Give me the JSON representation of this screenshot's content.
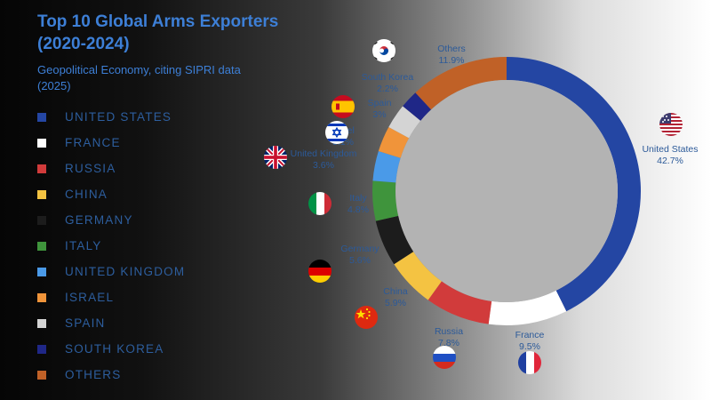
{
  "header": {
    "title_line1": "Top 10 Global Arms Exporters",
    "title_line2": "(2020-2024)",
    "subtitle_line1": "Geopolitical Economy, citing SIPRI data",
    "subtitle_line2": "(2025)"
  },
  "legend": [
    {
      "label": "UNITED STATES",
      "color": "#2446a3"
    },
    {
      "label": "FRANCE",
      "color": "#ffffff"
    },
    {
      "label": "RUSSIA",
      "color": "#d13b3b"
    },
    {
      "label": "CHINA",
      "color": "#f4c342"
    },
    {
      "label": "GERMANY",
      "color": "#1c1c1c"
    },
    {
      "label": "ITALY",
      "color": "#3f943c"
    },
    {
      "label": "UNITED KINGDOM",
      "color": "#4a9ae8"
    },
    {
      "label": "ISRAEL",
      "color": "#f0943a"
    },
    {
      "label": "SPAIN",
      "color": "#d4d4d4"
    },
    {
      "label": "SOUTH KOREA",
      "color": "#1f2787"
    },
    {
      "label": "OTHERS",
      "color": "#c06127"
    }
  ],
  "chart_data": {
    "type": "pie",
    "variant": "donut",
    "title": "Top 10 Global Arms Exporters (2020-2024)",
    "subtitle": "Geopolitical Economy, citing SIPRI data (2025)",
    "unit": "%",
    "legend_position": "left",
    "slices": [
      {
        "name": "United States",
        "value": 42.7,
        "label": "42.7%",
        "color": "#2446a3",
        "flag": "us-flag-icon"
      },
      {
        "name": "France",
        "value": 9.5,
        "label": "9.5%",
        "color": "#ffffff",
        "flag": "france-flag-icon"
      },
      {
        "name": "Russia",
        "value": 7.8,
        "label": "7.8%",
        "color": "#d13b3b",
        "flag": "russia-flag-icon"
      },
      {
        "name": "China",
        "value": 5.9,
        "label": "5.9%",
        "color": "#f4c342",
        "flag": "china-flag-icon"
      },
      {
        "name": "Germany",
        "value": 5.6,
        "label": "5.6%",
        "color": "#1c1c1c",
        "flag": "germany-flag-icon"
      },
      {
        "name": "Italy",
        "value": 4.8,
        "label": "4.8%",
        "color": "#3f943c",
        "flag": "italy-flag-icon"
      },
      {
        "name": "United Kingdom",
        "value": 3.6,
        "label": "3.6%",
        "color": "#4a9ae8",
        "flag": "uk-flag-icon"
      },
      {
        "name": "Israel",
        "value": 3.1,
        "label": "3.1%",
        "color": "#f0943a",
        "flag": "israel-flag-icon"
      },
      {
        "name": "Spain",
        "value": 3.0,
        "label": "3%",
        "color": "#d4d4d4",
        "flag": "spain-flag-icon"
      },
      {
        "name": "South Korea",
        "value": 2.2,
        "label": "2.2%",
        "color": "#1f2787",
        "flag": "south-korea-flag-icon"
      },
      {
        "name": "Others",
        "value": 11.9,
        "label": "11.9%",
        "color": "#c06127",
        "flag": null
      }
    ]
  }
}
